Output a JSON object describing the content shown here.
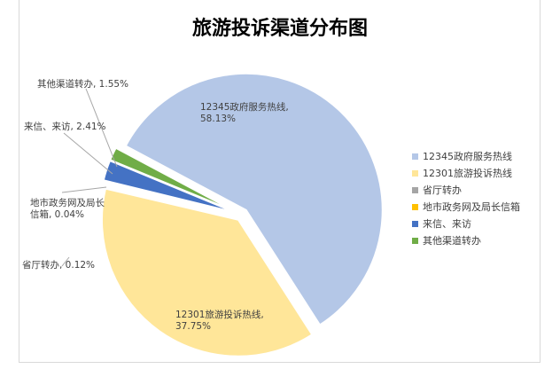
{
  "chart_data": {
    "type": "pie",
    "title": "旅游投诉渠道分布图",
    "categories": [
      "12345政府服务热线",
      "12301旅游投诉热线",
      "省厅转办",
      "地市政务网及局长信箱",
      "来信、来访",
      "其他渠道转办"
    ],
    "values": [
      58.13,
      37.75,
      0.12,
      0.04,
      2.41,
      1.55
    ],
    "data_labels": [
      "12345政府服务热线, 58.13%",
      "12301旅游投诉热线, 37.75%",
      "省厅转办, 0.12%",
      "地市政务网及局长信箱, 0.04%",
      "来信、来访, 2.41%",
      "其他渠道转办, 1.55%"
    ],
    "colors": [
      "#b4c7e7",
      "#ffe699",
      "#a5a5a5",
      "#ffc000",
      "#4472c4",
      "#70ad47"
    ],
    "legend_position": "right"
  }
}
